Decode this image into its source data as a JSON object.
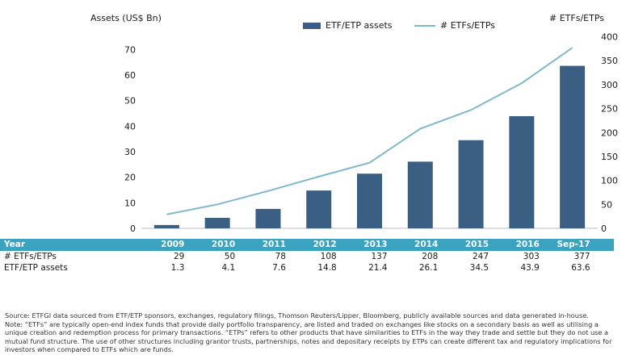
{
  "chart_data": {
    "type": "bar",
    "categories": [
      "2009",
      "2010",
      "2011",
      "2012",
      "2013",
      "2014",
      "2015",
      "2016",
      "Sep-17"
    ],
    "series": [
      {
        "name": "ETF/ETP assets",
        "type": "bar",
        "axis": "left",
        "values": [
          1.3,
          4.1,
          7.6,
          14.8,
          21.4,
          26.1,
          34.5,
          43.9,
          63.6
        ]
      },
      {
        "name": "# ETFs/ETPs",
        "type": "line",
        "axis": "right",
        "values": [
          29,
          50,
          78,
          108,
          137,
          208,
          247,
          303,
          377
        ]
      }
    ],
    "ylabel_left": "Assets (US$ Bn)",
    "ylabel_right": "# ETFs/ETPs",
    "ylim_left": [
      0,
      75
    ],
    "ylim_right": [
      0,
      400
    ],
    "yticks_left": [
      0,
      10,
      20,
      30,
      40,
      50,
      60,
      70
    ],
    "yticks_right": [
      0,
      50,
      100,
      150,
      200,
      250,
      300,
      350,
      400
    ],
    "legend_position": "top-center",
    "grid": false,
    "colors": {
      "bar": "#3b5f82",
      "line": "#7fb8cc",
      "table_header": "#3aa3c0"
    }
  },
  "table": {
    "header_label": "Year",
    "rows": [
      {
        "label": "# ETFs/ETPs",
        "values": [
          "29",
          "50",
          "78",
          "108",
          "137",
          "208",
          "247",
          "303",
          "377"
        ]
      },
      {
        "label": "ETF/ETP assets",
        "values": [
          "1.3",
          "4.1",
          "7.6",
          "14.8",
          "21.4",
          "26.1",
          "34.5",
          "43.9",
          "63.6"
        ]
      }
    ]
  },
  "footnote": {
    "source": "Source: ETFGI data sourced from ETF/ETP sponsors, exchanges, regulatory filings, Thomson Reuters/Lipper, Bloomberg, publicly available sources and data generated in-house.",
    "note": "Note: “ETFs” are typically open-end index funds that provide daily portfolio transparency, are listed and traded on exchanges like stocks on a secondary basis as well as utilising a unique creation and redemption process for primary transactions. “ETPs” refers to other products that have similarities to ETFs in the way they trade and settle but they do not use a mutual fund structure. The use of other structures including grantor trusts, partnerships, notes and depositary receipts by ETPs can create different tax and regulatory implications for investors when compared to ETFs which are funds."
  }
}
